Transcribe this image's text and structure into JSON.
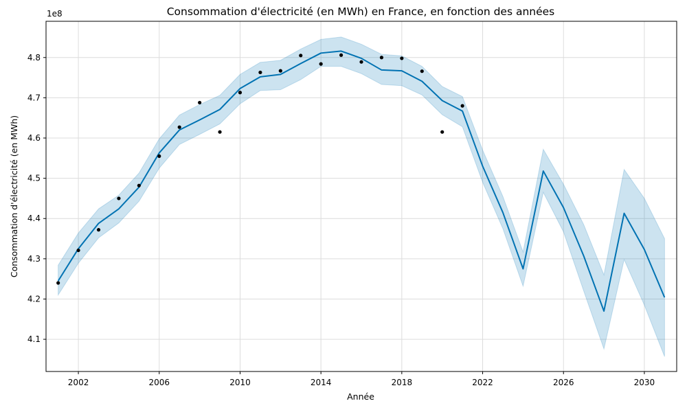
{
  "chart_data": {
    "type": "line",
    "title": "Consommation d'électricité (en MWh) en France, en fonction des années",
    "xlabel": "Année",
    "ylabel": "Consommation d'électricité (en MWh)",
    "y_offset_label": "1e8",
    "xlim": [
      2000.4,
      2031.6
    ],
    "ylim": [
      4.02,
      4.89
    ],
    "x_ticks": [
      2002,
      2006,
      2010,
      2014,
      2018,
      2022,
      2026,
      2030
    ],
    "y_ticks": [
      4.1,
      4.2,
      4.3,
      4.4,
      4.5,
      4.6,
      4.7,
      4.8
    ],
    "grid": true,
    "colors": {
      "forecast": "#0072B2",
      "interval": "#0072B2",
      "observed": "#000000"
    },
    "series": [
      {
        "kind": "observed",
        "x": [
          2001,
          2002,
          2003,
          2004,
          2005,
          2006,
          2007,
          2008,
          2009,
          2010,
          2011,
          2012,
          2013,
          2014,
          2015,
          2016,
          2017,
          2018,
          2019,
          2020,
          2021
        ],
        "values": [
          4.24,
          4.321,
          4.372,
          4.45,
          4.482,
          4.555,
          4.627,
          4.688,
          4.615,
          4.713,
          4.763,
          4.767,
          4.805,
          4.784,
          4.806,
          4.789,
          4.8,
          4.798,
          4.766,
          4.615,
          4.68
        ]
      },
      {
        "kind": "forecast",
        "x": [
          2001,
          2002,
          2003,
          2004,
          2005,
          2006,
          2007,
          2008,
          2009,
          2010,
          2011,
          2012,
          2013,
          2014,
          2015,
          2016,
          2017,
          2018,
          2019,
          2020,
          2021,
          2022,
          2023,
          2024,
          2025,
          2026,
          2027,
          2028,
          2029,
          2030,
          2031
        ],
        "values": [
          4.245,
          4.325,
          4.388,
          4.424,
          4.478,
          4.563,
          4.62,
          4.645,
          4.671,
          4.723,
          4.752,
          4.758,
          4.785,
          4.811,
          4.816,
          4.798,
          4.769,
          4.767,
          4.741,
          4.693,
          4.667,
          4.53,
          4.415,
          4.275,
          4.518,
          4.427,
          4.307,
          4.17,
          4.413,
          4.323,
          4.204
        ]
      },
      {
        "kind": "interval",
        "x": [
          2001,
          2002,
          2003,
          2004,
          2005,
          2006,
          2007,
          2008,
          2009,
          2010,
          2011,
          2012,
          2013,
          2014,
          2015,
          2016,
          2017,
          2018,
          2019,
          2020,
          2021,
          2022,
          2023,
          2024,
          2025,
          2026,
          2027,
          2028,
          2029,
          2030,
          2031
        ],
        "upper": [
          4.284,
          4.364,
          4.424,
          4.458,
          4.513,
          4.598,
          4.657,
          4.683,
          4.706,
          4.758,
          4.788,
          4.793,
          4.821,
          4.845,
          4.851,
          4.833,
          4.808,
          4.804,
          4.778,
          4.728,
          4.703,
          4.57,
          4.455,
          4.317,
          4.572,
          4.485,
          4.385,
          4.26,
          4.522,
          4.45,
          4.35
        ],
        "lower": [
          4.21,
          4.289,
          4.352,
          4.389,
          4.443,
          4.525,
          4.584,
          4.609,
          4.635,
          4.685,
          4.718,
          4.72,
          4.745,
          4.778,
          4.778,
          4.76,
          4.733,
          4.73,
          4.707,
          4.658,
          4.628,
          4.49,
          4.375,
          4.232,
          4.465,
          4.367,
          4.22,
          4.076,
          4.298,
          4.185,
          4.057
        ]
      }
    ]
  }
}
